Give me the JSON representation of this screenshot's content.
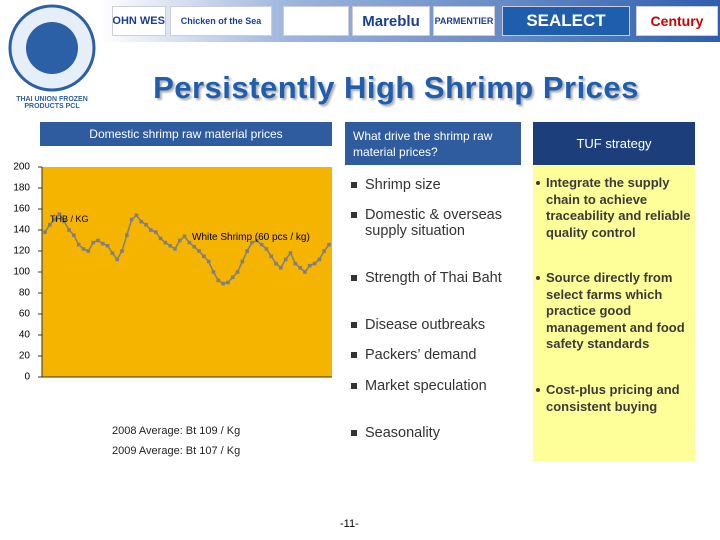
{
  "logos": [
    "JOHN WEST",
    "Chicken of the Sea",
    "Mareblu",
    "PARMENTIER",
    "SEALECT",
    "Century"
  ],
  "company": "THAI UNION FROZEN PRODUCTS PCL",
  "title": "Persistently High Shrimp Prices",
  "chart_data": {
    "type": "line",
    "title": "Domestic shrimp raw material prices",
    "ylabel": "THB / KG",
    "annotation": "White Shrimp (60 pcs / kg)",
    "categories": [
      null,
      null,
      null,
      null,
      null,
      null,
      null,
      null,
      null,
      null,
      null,
      null,
      null,
      null,
      null,
      null,
      null,
      null,
      null,
      null,
      null,
      null,
      null,
      null,
      null,
      null,
      null,
      null,
      null,
      null,
      null,
      null,
      null,
      null,
      null,
      null,
      null,
      null,
      null,
      null,
      null,
      null,
      null,
      null,
      null,
      null,
      null,
      null,
      null,
      null,
      null,
      null,
      null,
      null,
      null,
      null,
      null,
      null,
      null,
      null
    ],
    "series": [
      {
        "name": "White Shrimp (60 pcs / kg)",
        "color": "#7f7f7f",
        "values": [
          138,
          145,
          150,
          155,
          148,
          140,
          135,
          126,
          122,
          120,
          128,
          130,
          127,
          125,
          118,
          112,
          120,
          135,
          150,
          154,
          148,
          145,
          140,
          138,
          132,
          128,
          125,
          122,
          130,
          134,
          128,
          124,
          120,
          115,
          110,
          100,
          92,
          89,
          90,
          95,
          100,
          110,
          120,
          128,
          130,
          126,
          122,
          115,
          108,
          104,
          112,
          118,
          108,
          104,
          100,
          106,
          108,
          112,
          120,
          126
        ]
      }
    ],
    "ylim": [
      0,
      200
    ],
    "yticks": [
      0,
      20,
      40,
      60,
      80,
      100,
      120,
      140,
      160,
      180,
      200
    ]
  },
  "averages": [
    "2008 Average: Bt 109 / Kg",
    "2009 Average: Bt 107 / Kg"
  ],
  "drivers": {
    "header": "What drive the shrimp raw material prices?",
    "items": [
      "Shrimp size",
      "Domestic & overseas supply situation",
      "Strength of Thai Baht",
      "Disease outbreaks",
      "Packers’ demand",
      "Market speculation",
      "Seasonality"
    ]
  },
  "strategy": {
    "header": "TUF strategy",
    "items": [
      "Integrate the supply chain to achieve traceability and reliable quality control",
      "Source directly from select farms which practice good management and food safety standards",
      "Cost-plus pricing and consistent buying"
    ]
  },
  "page_number": "-11-"
}
